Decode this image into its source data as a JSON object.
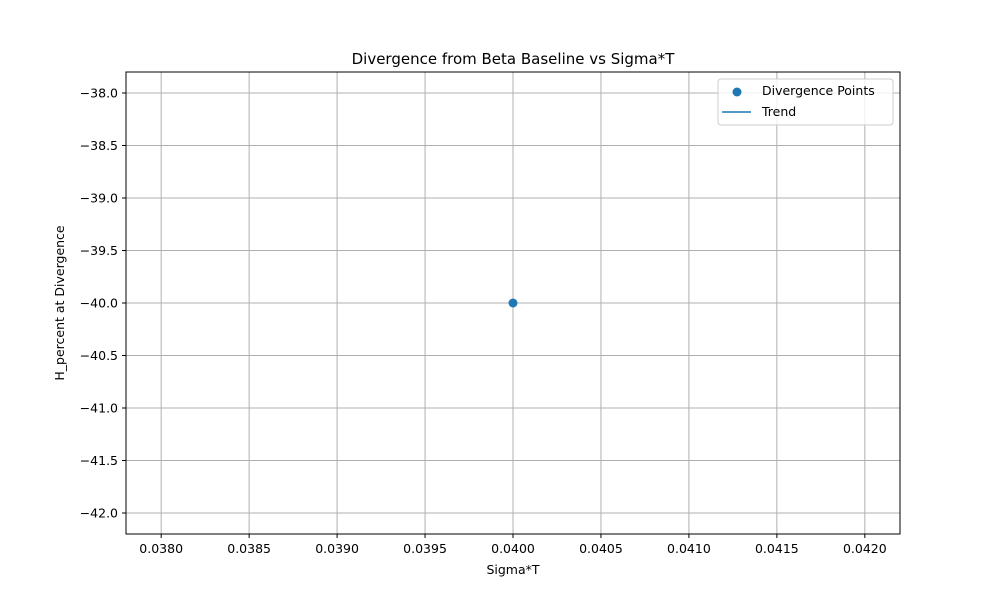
{
  "chart_data": {
    "type": "scatter",
    "title": "Divergence from Beta Baseline vs Sigma*T",
    "xlabel": "Sigma*T",
    "ylabel": "H_percent at Divergence",
    "xlim": [
      0.0378,
      0.0422
    ],
    "ylim": [
      -42.2,
      -37.8
    ],
    "xticks": [
      "0.0380",
      "0.0385",
      "0.0390",
      "0.0395",
      "0.0400",
      "0.0405",
      "0.0410",
      "0.0415",
      "0.0420"
    ],
    "xtick_values": [
      0.038,
      0.0385,
      0.039,
      0.0395,
      0.04,
      0.0405,
      0.041,
      0.0415,
      0.042
    ],
    "yticks": [
      "−38.0",
      "−38.5",
      "−39.0",
      "−39.5",
      "−40.0",
      "−40.5",
      "−41.0",
      "−41.5",
      "−42.0"
    ],
    "ytick_values": [
      -38.0,
      -38.5,
      -39.0,
      -39.5,
      -40.0,
      -40.5,
      -41.0,
      -41.5,
      -42.0
    ],
    "grid": true,
    "legend_position": "top-right",
    "series": [
      {
        "name": "Divergence Points",
        "kind": "scatter",
        "color": "#1f77b4",
        "points": [
          {
            "x": 0.04,
            "y": -40.0
          }
        ]
      },
      {
        "name": "Trend",
        "kind": "line",
        "color": "#1f77b4",
        "points": []
      }
    ]
  }
}
